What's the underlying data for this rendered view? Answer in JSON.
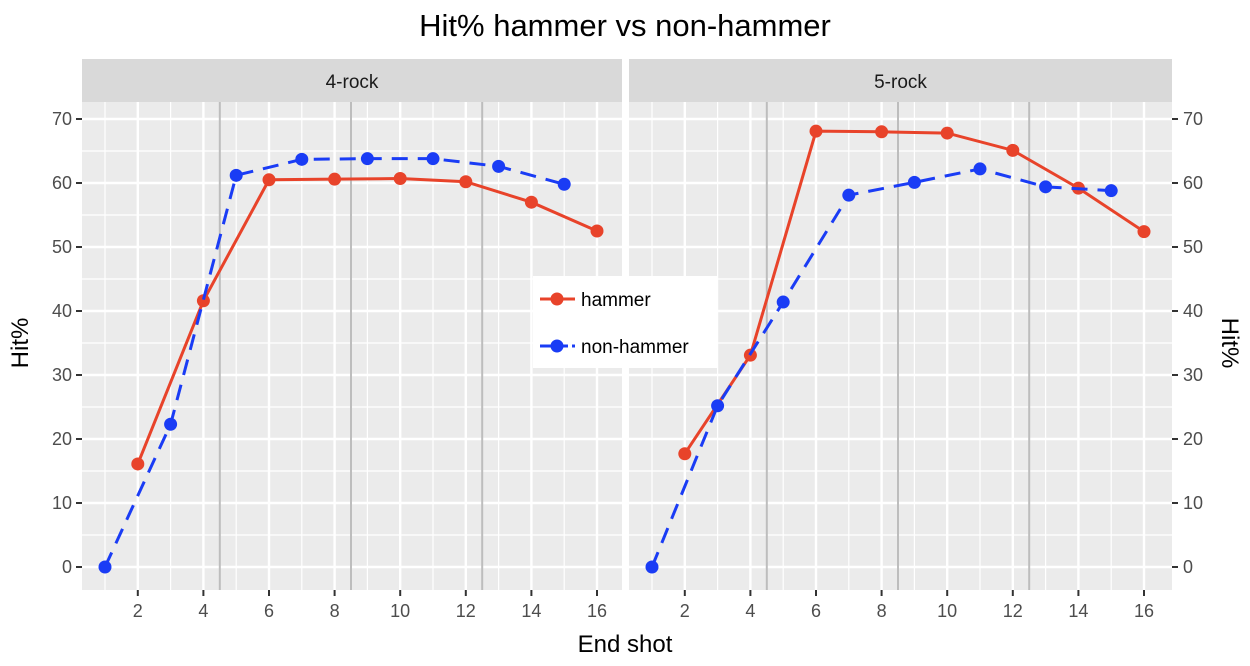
{
  "chart_data": {
    "type": "line",
    "title": "Hit% hammer vs non-hammer",
    "xlabel": "End shot",
    "ylabel": "Hit%",
    "ylim": [
      -3.5,
      73.5
    ],
    "xlim": [
      0.25,
      16.75
    ],
    "x_ticks": [
      2,
      4,
      6,
      8,
      10,
      12,
      14,
      16
    ],
    "y_ticks": [
      0,
      10,
      20,
      30,
      40,
      50,
      60,
      70
    ],
    "grid": true,
    "vertical_reference_lines": [
      4.5,
      8.5,
      12.5
    ],
    "legend": {
      "position": "inside-center",
      "entries": [
        {
          "name": "hammer",
          "color": "#e8432a",
          "linestyle": "solid"
        },
        {
          "name": "non-hammer",
          "color": "#1a3cf5",
          "linestyle": "dashed"
        }
      ]
    },
    "panels": [
      {
        "label": "4-rock",
        "series": [
          {
            "name": "hammer",
            "x": [
              2,
              4,
              6,
              8,
              10,
              12,
              14,
              16
            ],
            "values": [
              16.1,
              41.6,
              60.5,
              60.6,
              60.7,
              60.2,
              57.0,
              52.5
            ]
          },
          {
            "name": "non-hammer",
            "x": [
              1,
              3,
              5,
              7,
              9,
              11,
              13,
              15
            ],
            "values": [
              0.0,
              22.3,
              61.2,
              63.7,
              63.8,
              63.8,
              62.6,
              59.8
            ]
          }
        ]
      },
      {
        "label": "5-rock",
        "series": [
          {
            "name": "hammer",
            "x": [
              2,
              4,
              6,
              8,
              10,
              12,
              14,
              16
            ],
            "values": [
              17.7,
              33.1,
              68.1,
              68.0,
              67.8,
              65.1,
              59.2,
              52.4
            ]
          },
          {
            "name": "non-hammer",
            "x": [
              1,
              3,
              5,
              7,
              9,
              11,
              13,
              15
            ],
            "values": [
              0.0,
              25.2,
              41.4,
              58.1,
              60.1,
              62.2,
              59.4,
              58.8
            ]
          }
        ]
      }
    ]
  },
  "colors": {
    "hammer": "#e8432a",
    "non_hammer": "#1a3cf5",
    "panel_bg": "#ebebeb",
    "strip_bg": "#d9d9d9",
    "grid": "#ffffff",
    "ref_line": "#bdbdbd"
  }
}
